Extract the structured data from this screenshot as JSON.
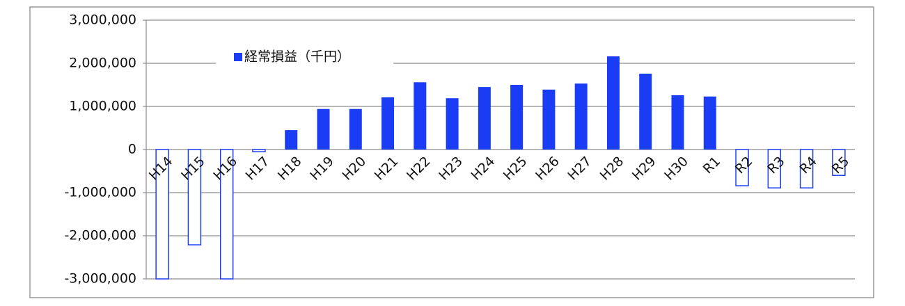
{
  "chart_data": {
    "type": "bar",
    "categories": [
      "H14",
      "H15",
      "H16",
      "H17",
      "H18",
      "H19",
      "H20",
      "H21",
      "H22",
      "H23",
      "H24",
      "H25",
      "H26",
      "H27",
      "H28",
      "H29",
      "H30",
      "R1",
      "R2",
      "R3",
      "R4",
      "R5"
    ],
    "series": [
      {
        "name": "経常損益（千円）",
        "color": "#1a3cf4",
        "values": [
          -3000000,
          -2210000,
          -3000000,
          -50000,
          450000,
          940000,
          940000,
          1210000,
          1560000,
          1190000,
          1450000,
          1500000,
          1390000,
          1530000,
          2160000,
          1760000,
          1260000,
          1230000,
          -840000,
          -890000,
          -890000,
          -600000
        ]
      }
    ],
    "invert_if_negative": true,
    "ylim": [
      -3000000,
      3000000
    ],
    "yticks": [
      {
        "value": -3000000,
        "label": "-3,000,000"
      },
      {
        "value": -2000000,
        "label": "-2,000,000"
      },
      {
        "value": -1000000,
        "label": "-1,000,000"
      },
      0,
      {
        "value": 1000000,
        "label": "1,000,000"
      },
      {
        "value": 2000000,
        "label": "2,000,000"
      },
      {
        "value": 3000000,
        "label": "3,000,000"
      }
    ],
    "grid": true,
    "legend": "top-left"
  }
}
